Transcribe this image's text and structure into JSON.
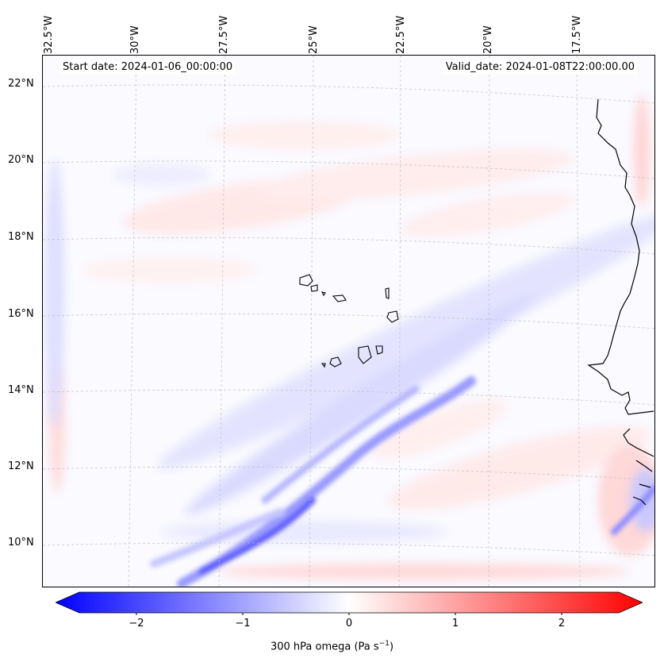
{
  "map": {
    "lon_labels": [
      "32.5°W",
      "30°W",
      "27.5°W",
      "25°W",
      "22.5°W",
      "20°W",
      "17.5°W"
    ],
    "lat_labels": [
      "22°N",
      "20°N",
      "18°N",
      "16°N",
      "14°N",
      "12°N",
      "10°N"
    ],
    "start_date": "Start date: 2024-01-06_00:00:00",
    "valid_date": "Valid_date: 2024-01-08T22:00:00.00"
  },
  "colorbar": {
    "ticks": [
      "−2",
      "−1",
      "0",
      "1",
      "2"
    ],
    "label_prefix": "300 hPa omega (Pa s",
    "label_sup": "−1",
    "label_suffix": ")",
    "range": [
      -2.6,
      2.6
    ],
    "colors": {
      "negative": "#0000ff",
      "zero": "#ffffff",
      "positive": "#ff0000"
    }
  }
}
